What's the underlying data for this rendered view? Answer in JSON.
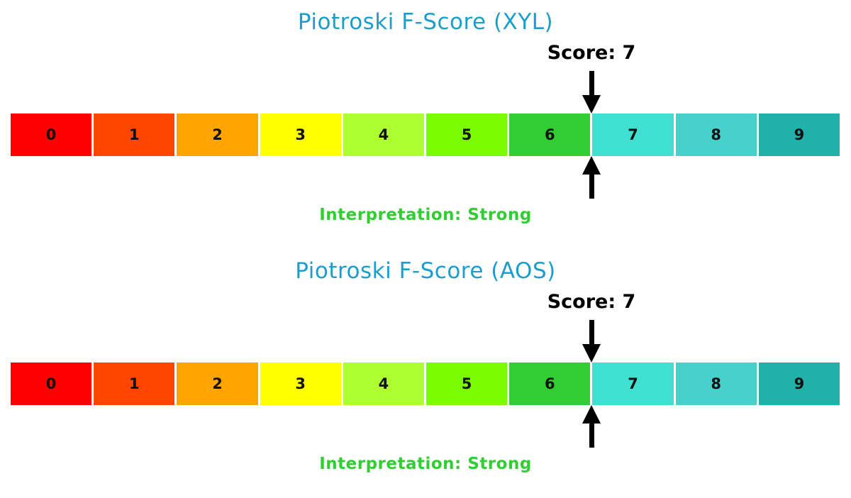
{
  "page": {
    "background": "#ffffff"
  },
  "colors": {
    "title": "#1b9ece",
    "score_text": "#000000",
    "interpretation": "#32cd32",
    "arrow": "#000000",
    "segment_label": "#111111"
  },
  "charts": [
    {
      "title": "Piotroski F-Score (XYL)",
      "score_label": "Score: 7",
      "score": 7,
      "interpretation_label": "Interpretation: Strong",
      "segments": [
        {
          "label": "0",
          "color": "#ff0000"
        },
        {
          "label": "1",
          "color": "#ff4500"
        },
        {
          "label": "2",
          "color": "#ffa500"
        },
        {
          "label": "3",
          "color": "#ffff00"
        },
        {
          "label": "4",
          "color": "#adff2f"
        },
        {
          "label": "5",
          "color": "#7cfc00"
        },
        {
          "label": "6",
          "color": "#32cd32"
        },
        {
          "label": "7",
          "color": "#40e0d0"
        },
        {
          "label": "8",
          "color": "#48d1cc"
        },
        {
          "label": "9",
          "color": "#20b2aa"
        }
      ]
    },
    {
      "title": "Piotroski F-Score (AOS)",
      "score_label": "Score: 7",
      "score": 7,
      "interpretation_label": "Interpretation: Strong",
      "segments": [
        {
          "label": "0",
          "color": "#ff0000"
        },
        {
          "label": "1",
          "color": "#ff4500"
        },
        {
          "label": "2",
          "color": "#ffa500"
        },
        {
          "label": "3",
          "color": "#ffff00"
        },
        {
          "label": "4",
          "color": "#adff2f"
        },
        {
          "label": "5",
          "color": "#7cfc00"
        },
        {
          "label": "6",
          "color": "#32cd32"
        },
        {
          "label": "7",
          "color": "#40e0d0"
        },
        {
          "label": "8",
          "color": "#48d1cc"
        },
        {
          "label": "9",
          "color": "#20b2aa"
        }
      ]
    }
  ],
  "chart_data": [
    {
      "type": "bar",
      "subtype": "score-scale-gauge",
      "title": "Piotroski F-Score (XYL)",
      "categories": [
        "0",
        "1",
        "2",
        "3",
        "4",
        "5",
        "6",
        "7",
        "8",
        "9"
      ],
      "values": [
        1,
        1,
        1,
        1,
        1,
        1,
        1,
        1,
        1,
        1
      ],
      "score": 7,
      "score_label": "Score: 7",
      "marker": "black arrows above and below the scale at the boundary between segments 6 and 7",
      "interpretation": "Strong",
      "segment_colors": [
        "#ff0000",
        "#ff4500",
        "#ffa500",
        "#ffff00",
        "#adff2f",
        "#7cfc00",
        "#32cd32",
        "#40e0d0",
        "#48d1cc",
        "#20b2aa"
      ],
      "xlabel": "",
      "ylabel": "",
      "legend": "none",
      "axes_visible": false,
      "grid": false
    },
    {
      "type": "bar",
      "subtype": "score-scale-gauge",
      "title": "Piotroski F-Score (AOS)",
      "categories": [
        "0",
        "1",
        "2",
        "3",
        "4",
        "5",
        "6",
        "7",
        "8",
        "9"
      ],
      "values": [
        1,
        1,
        1,
        1,
        1,
        1,
        1,
        1,
        1,
        1
      ],
      "score": 7,
      "score_label": "Score: 7",
      "marker": "black arrows above and below the scale at the boundary between segments 6 and 7",
      "interpretation": "Strong",
      "segment_colors": [
        "#ff0000",
        "#ff4500",
        "#ffa500",
        "#ffff00",
        "#adff2f",
        "#7cfc00",
        "#32cd32",
        "#40e0d0",
        "#48d1cc",
        "#20b2aa"
      ],
      "xlabel": "",
      "ylabel": "",
      "legend": "none",
      "axes_visible": false,
      "grid": false
    }
  ]
}
